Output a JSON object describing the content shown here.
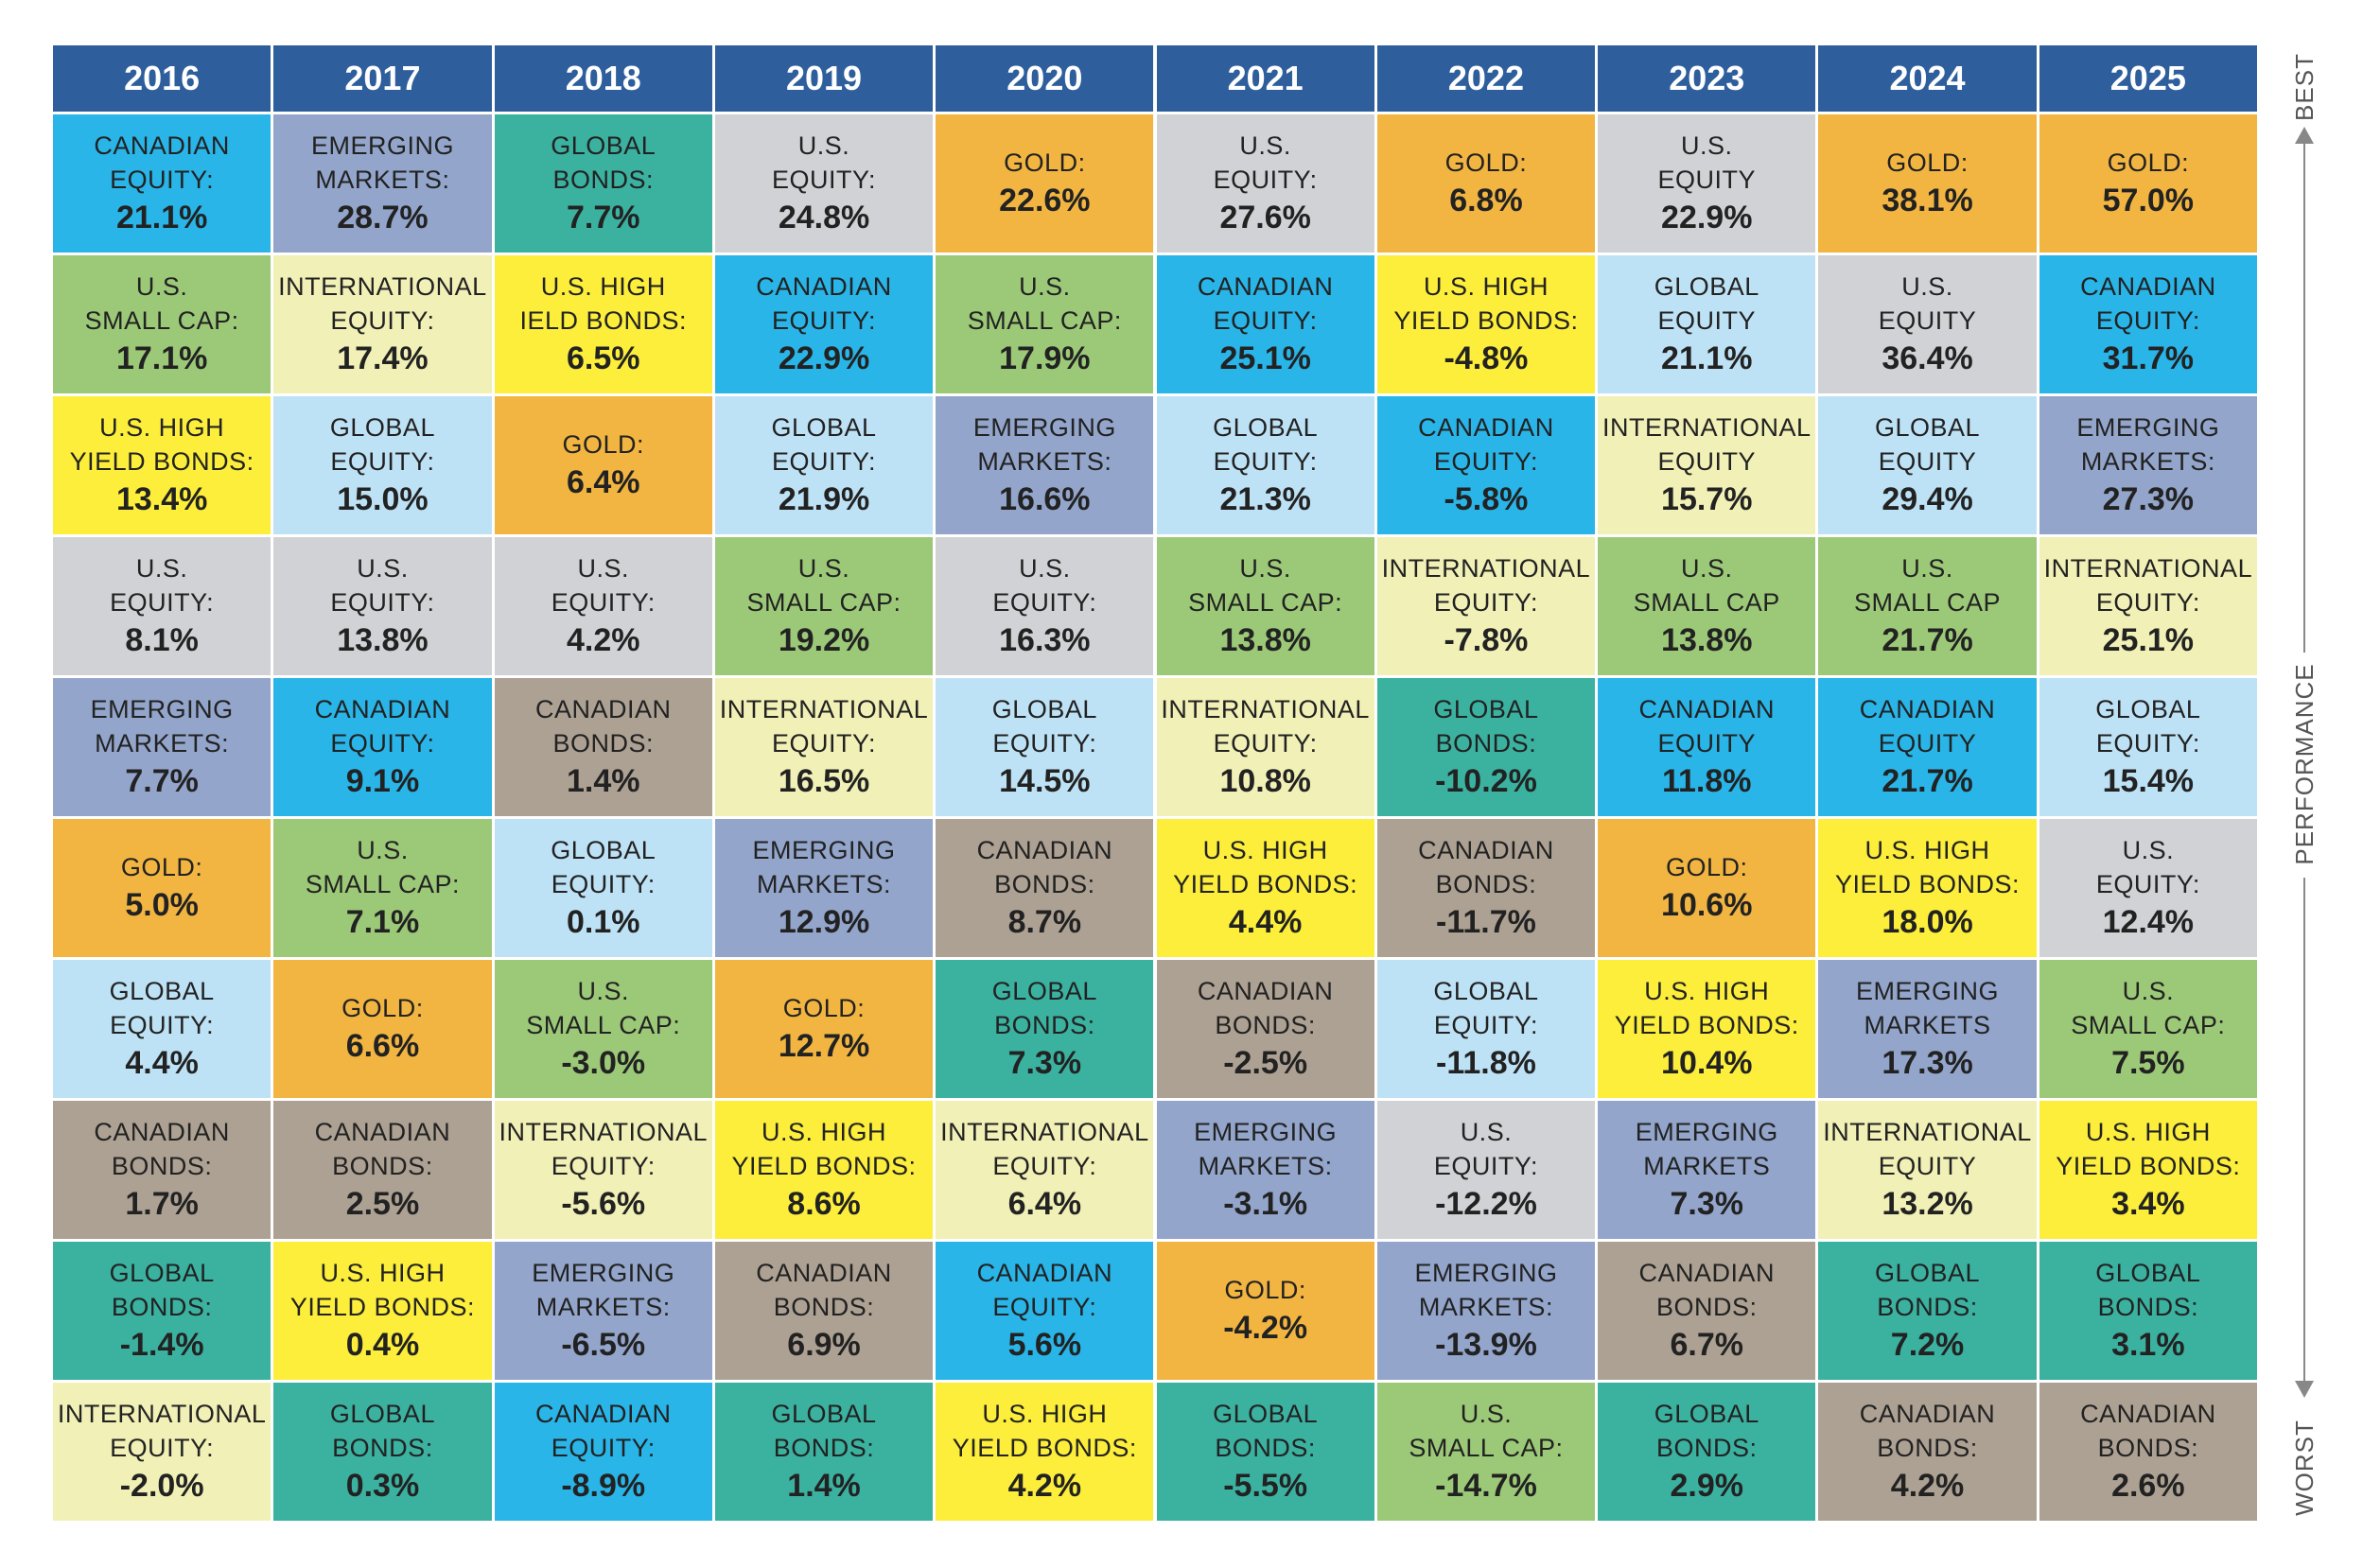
{
  "side": {
    "top": "BEST",
    "middle": "PERFORMANCE",
    "bottom": "WORST"
  },
  "columns": [
    {
      "header": "2016",
      "cells": [
        {
          "lines": [
            "CANADIAN",
            "EQUITY:"
          ],
          "value": "21.1%",
          "color": "#29b5e8"
        },
        {
          "lines": [
            "U.S.",
            "SMALL CAP:"
          ],
          "value": "17.1%",
          "color": "#9cc978"
        },
        {
          "lines": [
            "U.S. HIGH",
            "YIELD BONDS:"
          ],
          "value": "13.4%",
          "color": "#fcee3b"
        },
        {
          "lines": [
            "U.S.",
            "EQUITY:"
          ],
          "value": "8.1%",
          "color": "#d0d2d5"
        },
        {
          "lines": [
            "EMERGING",
            "MARKETS:"
          ],
          "value": "7.7%",
          "color": "#93a5cb"
        },
        {
          "lines": [
            "GOLD:"
          ],
          "value": "5.0%",
          "color": "#f2b541"
        },
        {
          "lines": [
            "GLOBAL",
            "EQUITY:"
          ],
          "value": "4.4%",
          "color": "#bee2f5"
        },
        {
          "lines": [
            "CANADIAN",
            "BONDS:"
          ],
          "value": "1.7%",
          "color": "#ada193"
        },
        {
          "lines": [
            "GLOBAL",
            "BONDS:"
          ],
          "value": "-1.4%",
          "color": "#3bb1a0"
        },
        {
          "lines": [
            "INTERNATIONAL",
            "EQUITY:"
          ],
          "value": "-2.0%",
          "color": "#f1f0b6"
        }
      ]
    },
    {
      "header": "2017",
      "cells": [
        {
          "lines": [
            "EMERGING",
            "MARKETS:"
          ],
          "value": "28.7%",
          "color": "#93a5cb"
        },
        {
          "lines": [
            "INTERNATIONAL",
            "EQUITY:"
          ],
          "value": "17.4%",
          "color": "#f1f0b6"
        },
        {
          "lines": [
            "GLOBAL",
            "EQUITY:"
          ],
          "value": "15.0%",
          "color": "#bee2f5"
        },
        {
          "lines": [
            "U.S.",
            "EQUITY:"
          ],
          "value": "13.8%",
          "color": "#d0d2d5"
        },
        {
          "lines": [
            "CANADIAN",
            "EQUITY:"
          ],
          "value": "9.1%",
          "color": "#29b5e8"
        },
        {
          "lines": [
            "U.S.",
            "SMALL CAP:"
          ],
          "value": "7.1%",
          "color": "#9cc978"
        },
        {
          "lines": [
            "GOLD:"
          ],
          "value": "6.6%",
          "color": "#f2b541"
        },
        {
          "lines": [
            "CANADIAN",
            "BONDS:"
          ],
          "value": "2.5%",
          "color": "#ada193"
        },
        {
          "lines": [
            "U.S. HIGH",
            "YIELD BONDS:"
          ],
          "value": "0.4%",
          "color": "#fcee3b"
        },
        {
          "lines": [
            "GLOBAL",
            "BONDS:"
          ],
          "value": "0.3%",
          "color": "#3bb1a0"
        }
      ]
    },
    {
      "header": "2018",
      "cells": [
        {
          "lines": [
            "GLOBAL",
            "BONDS:"
          ],
          "value": "7.7%",
          "color": "#3bb1a0"
        },
        {
          "lines": [
            "U.S. HIGH",
            "IELD BONDS:"
          ],
          "value": "6.5%",
          "color": "#fcee3b"
        },
        {
          "lines": [
            "GOLD:"
          ],
          "value": "6.4%",
          "color": "#f2b541"
        },
        {
          "lines": [
            "U.S.",
            "EQUITY:"
          ],
          "value": "4.2%",
          "color": "#d0d2d5"
        },
        {
          "lines": [
            "CANADIAN",
            "BONDS:"
          ],
          "value": "1.4%",
          "color": "#ada193"
        },
        {
          "lines": [
            "GLOBAL",
            "EQUITY:"
          ],
          "value": "0.1%",
          "color": "#bee2f5"
        },
        {
          "lines": [
            "U.S.",
            "SMALL CAP:"
          ],
          "value": "-3.0%",
          "color": "#9cc978"
        },
        {
          "lines": [
            "INTERNATIONAL",
            "EQUITY:"
          ],
          "value": "-5.6%",
          "color": "#f1f0b6"
        },
        {
          "lines": [
            "EMERGING",
            "MARKETS:"
          ],
          "value": "-6.5%",
          "color": "#93a5cb"
        },
        {
          "lines": [
            "CANADIAN",
            "EQUITY:"
          ],
          "value": "-8.9%",
          "color": "#29b5e8"
        }
      ]
    },
    {
      "header": "2019",
      "cells": [
        {
          "lines": [
            "U.S.",
            "EQUITY:"
          ],
          "value": "24.8%",
          "color": "#d0d2d5"
        },
        {
          "lines": [
            "CANADIAN",
            "EQUITY:"
          ],
          "value": "22.9%",
          "color": "#29b5e8"
        },
        {
          "lines": [
            "GLOBAL",
            "EQUITY:"
          ],
          "value": "21.9%",
          "color": "#bee2f5"
        },
        {
          "lines": [
            "U.S.",
            "SMALL CAP:"
          ],
          "value": "19.2%",
          "color": "#9cc978"
        },
        {
          "lines": [
            "INTERNATIONAL",
            "EQUITY:"
          ],
          "value": "16.5%",
          "color": "#f1f0b6"
        },
        {
          "lines": [
            "EMERGING",
            "MARKETS:"
          ],
          "value": "12.9%",
          "color": "#93a5cb"
        },
        {
          "lines": [
            "GOLD:"
          ],
          "value": "12.7%",
          "color": "#f2b541"
        },
        {
          "lines": [
            "U.S. HIGH",
            "YIELD BONDS:"
          ],
          "value": "8.6%",
          "color": "#fcee3b"
        },
        {
          "lines": [
            "CANADIAN",
            "BONDS:"
          ],
          "value": "6.9%",
          "color": "#ada193"
        },
        {
          "lines": [
            "GLOBAL",
            "BONDS:"
          ],
          "value": "1.4%",
          "color": "#3bb1a0"
        }
      ]
    },
    {
      "header": "2020",
      "cells": [
        {
          "lines": [
            "GOLD:"
          ],
          "value": "22.6%",
          "color": "#f2b541"
        },
        {
          "lines": [
            "U.S.",
            "SMALL CAP:"
          ],
          "value": "17.9%",
          "color": "#9cc978"
        },
        {
          "lines": [
            "EMERGING",
            "MARKETS:"
          ],
          "value": "16.6%",
          "color": "#93a5cb"
        },
        {
          "lines": [
            "U.S.",
            "EQUITY:"
          ],
          "value": "16.3%",
          "color": "#d0d2d5"
        },
        {
          "lines": [
            "GLOBAL",
            "EQUITY:"
          ],
          "value": "14.5%",
          "color": "#bee2f5"
        },
        {
          "lines": [
            "CANADIAN",
            "BONDS:"
          ],
          "value": "8.7%",
          "color": "#ada193"
        },
        {
          "lines": [
            "GLOBAL",
            "BONDS:"
          ],
          "value": "7.3%",
          "color": "#3bb1a0"
        },
        {
          "lines": [
            "INTERNATIONAL",
            "EQUITY:"
          ],
          "value": "6.4%",
          "color": "#f1f0b6"
        },
        {
          "lines": [
            "CANADIAN",
            "EQUITY:"
          ],
          "value": "5.6%",
          "color": "#29b5e8"
        },
        {
          "lines": [
            "U.S. HIGH",
            "YIELD BONDS:"
          ],
          "value": "4.2%",
          "color": "#fcee3b"
        }
      ]
    },
    {
      "header": "2021",
      "cells": [
        {
          "lines": [
            "U.S.",
            "EQUITY:"
          ],
          "value": "27.6%",
          "color": "#d0d2d5"
        },
        {
          "lines": [
            "CANADIAN",
            "EQUITY:"
          ],
          "value": "25.1%",
          "color": "#29b5e8"
        },
        {
          "lines": [
            "GLOBAL",
            "EQUITY:"
          ],
          "value": "21.3%",
          "color": "#bee2f5"
        },
        {
          "lines": [
            "U.S.",
            "SMALL CAP:"
          ],
          "value": "13.8%",
          "color": "#9cc978"
        },
        {
          "lines": [
            "INTERNATIONAL",
            "EQUITY:"
          ],
          "value": "10.8%",
          "color": "#f1f0b6"
        },
        {
          "lines": [
            "U.S. HIGH",
            "YIELD BONDS:"
          ],
          "value": "4.4%",
          "color": "#fcee3b"
        },
        {
          "lines": [
            "CANADIAN",
            "BONDS:"
          ],
          "value": "-2.5%",
          "color": "#ada193"
        },
        {
          "lines": [
            "EMERGING",
            "MARKETS:"
          ],
          "value": "-3.1%",
          "color": "#93a5cb"
        },
        {
          "lines": [
            "GOLD:"
          ],
          "value": "-4.2%",
          "color": "#f2b541"
        },
        {
          "lines": [
            "GLOBAL",
            "BONDS:"
          ],
          "value": "-5.5%",
          "color": "#3bb1a0"
        }
      ]
    },
    {
      "header": "2022",
      "cells": [
        {
          "lines": [
            "GOLD:"
          ],
          "value": "6.8%",
          "color": "#f2b541"
        },
        {
          "lines": [
            "U.S. HIGH",
            "YIELD BONDS:"
          ],
          "value": "-4.8%",
          "color": "#fcee3b"
        },
        {
          "lines": [
            "CANADIAN",
            "EQUITY:"
          ],
          "value": "-5.8%",
          "color": "#29b5e8"
        },
        {
          "lines": [
            "INTERNATIONAL",
            "EQUITY:"
          ],
          "value": "-7.8%",
          "color": "#f1f0b6"
        },
        {
          "lines": [
            "GLOBAL",
            "BONDS:"
          ],
          "value": "-10.2%",
          "color": "#3bb1a0"
        },
        {
          "lines": [
            "CANADIAN",
            "BONDS:"
          ],
          "value": "-11.7%",
          "color": "#ada193"
        },
        {
          "lines": [
            "GLOBAL",
            "EQUITY:"
          ],
          "value": "-11.8%",
          "color": "#bee2f5"
        },
        {
          "lines": [
            "U.S.",
            "EQUITY:"
          ],
          "value": "-12.2%",
          "color": "#d0d2d5"
        },
        {
          "lines": [
            "EMERGING",
            "MARKETS:"
          ],
          "value": "-13.9%",
          "color": "#93a5cb"
        },
        {
          "lines": [
            "U.S.",
            "SMALL CAP:"
          ],
          "value": "-14.7%",
          "color": "#9cc978"
        }
      ]
    },
    {
      "header": "2023",
      "cells": [
        {
          "lines": [
            "U.S.",
            "EQUITY"
          ],
          "value": "22.9%",
          "color": "#d0d2d5"
        },
        {
          "lines": [
            "GLOBAL",
            "EQUITY"
          ],
          "value": "21.1%",
          "color": "#bee2f5"
        },
        {
          "lines": [
            "INTERNATIONAL",
            "EQUITY"
          ],
          "value": "15.7%",
          "color": "#f1f0b6"
        },
        {
          "lines": [
            "U.S.",
            "SMALL CAP"
          ],
          "value": "13.8%",
          "color": "#9cc978"
        },
        {
          "lines": [
            "CANADIAN",
            "EQUITY"
          ],
          "value": "11.8%",
          "color": "#29b5e8"
        },
        {
          "lines": [
            "GOLD:"
          ],
          "value": "10.6%",
          "color": "#f2b541"
        },
        {
          "lines": [
            "U.S. HIGH",
            "YIELD BONDS:"
          ],
          "value": "10.4%",
          "color": "#fcee3b"
        },
        {
          "lines": [
            "EMERGING",
            "MARKETS"
          ],
          "value": "7.3%",
          "color": "#93a5cb"
        },
        {
          "lines": [
            "CANADIAN",
            "BONDS:"
          ],
          "value": "6.7%",
          "color": "#ada193"
        },
        {
          "lines": [
            "GLOBAL",
            "BONDS:"
          ],
          "value": "2.9%",
          "color": "#3bb1a0"
        }
      ]
    },
    {
      "header": "2024",
      "cells": [
        {
          "lines": [
            "GOLD:"
          ],
          "value": "38.1%",
          "color": "#f2b541"
        },
        {
          "lines": [
            "U.S.",
            "EQUITY"
          ],
          "value": "36.4%",
          "color": "#d0d2d5"
        },
        {
          "lines": [
            "GLOBAL",
            "EQUITY"
          ],
          "value": "29.4%",
          "color": "#bee2f5"
        },
        {
          "lines": [
            "U.S.",
            "SMALL CAP"
          ],
          "value": "21.7%",
          "color": "#9cc978"
        },
        {
          "lines": [
            "CANADIAN",
            "EQUITY"
          ],
          "value": "21.7%",
          "color": "#29b5e8"
        },
        {
          "lines": [
            "U.S. HIGH",
            "YIELD BONDS:"
          ],
          "value": "18.0%",
          "color": "#fcee3b"
        },
        {
          "lines": [
            "EMERGING",
            "MARKETS"
          ],
          "value": "17.3%",
          "color": "#93a5cb"
        },
        {
          "lines": [
            "INTERNATIONAL",
            "EQUITY"
          ],
          "value": "13.2%",
          "color": "#f1f0b6"
        },
        {
          "lines": [
            "GLOBAL",
            "BONDS:"
          ],
          "value": "7.2%",
          "color": "#3bb1a0"
        },
        {
          "lines": [
            "CANADIAN",
            "BONDS:"
          ],
          "value": "4.2%",
          "color": "#ada193"
        }
      ]
    },
    {
      "header": "2025",
      "cells": [
        {
          "lines": [
            "GOLD:"
          ],
          "value": "57.0%",
          "color": "#f2b541"
        },
        {
          "lines": [
            "CANADIAN",
            "EQUITY:"
          ],
          "value": "31.7%",
          "color": "#29b5e8"
        },
        {
          "lines": [
            "EMERGING",
            "MARKETS:"
          ],
          "value": "27.3%",
          "color": "#93a5cb"
        },
        {
          "lines": [
            "INTERNATIONAL",
            "EQUITY:"
          ],
          "value": "25.1%",
          "color": "#f1f0b6"
        },
        {
          "lines": [
            "GLOBAL",
            "EQUITY:"
          ],
          "value": "15.4%",
          "color": "#bee2f5"
        },
        {
          "lines": [
            "U.S.",
            "EQUITY:"
          ],
          "value": "12.4%",
          "color": "#d0d2d5"
        },
        {
          "lines": [
            "U.S.",
            "SMALL CAP:"
          ],
          "value": "7.5%",
          "color": "#9cc978"
        },
        {
          "lines": [
            "U.S. HIGH",
            "YIELD BONDS:"
          ],
          "value": "3.4%",
          "color": "#fcee3b"
        },
        {
          "lines": [
            "GLOBAL",
            "BONDS:"
          ],
          "value": "3.1%",
          "color": "#3bb1a0"
        },
        {
          "lines": [
            "CANADIAN",
            "BONDS:"
          ],
          "value": "2.6%",
          "color": "#ada193"
        }
      ]
    }
  ]
}
